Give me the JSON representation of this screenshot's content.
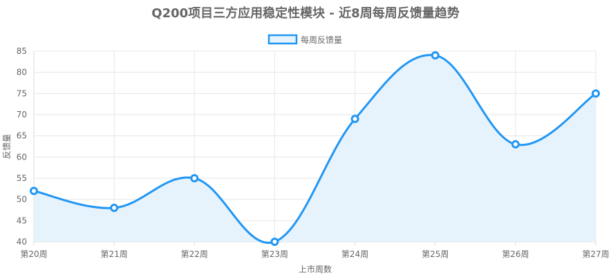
{
  "chart_data": {
    "type": "line",
    "title": "Q200项目三方应用稳定性模块 - 近8周每周反馈量趋势",
    "xlabel": "上市周数",
    "ylabel": "反馈量",
    "categories": [
      "第20周",
      "第21周",
      "第22周",
      "第23周",
      "第24周",
      "第25周",
      "第26周",
      "第27周"
    ],
    "series": [
      {
        "name": "每周反馈量",
        "values": [
          52,
          48,
          55,
          40,
          69,
          84,
          63,
          75
        ],
        "color": "#2196f3",
        "fill": "#e6f3fd"
      }
    ],
    "ylim": [
      40,
      85
    ],
    "yticks": [
      40,
      45,
      50,
      55,
      60,
      65,
      70,
      75,
      80,
      85
    ],
    "grid": true,
    "legend": "top-center"
  }
}
